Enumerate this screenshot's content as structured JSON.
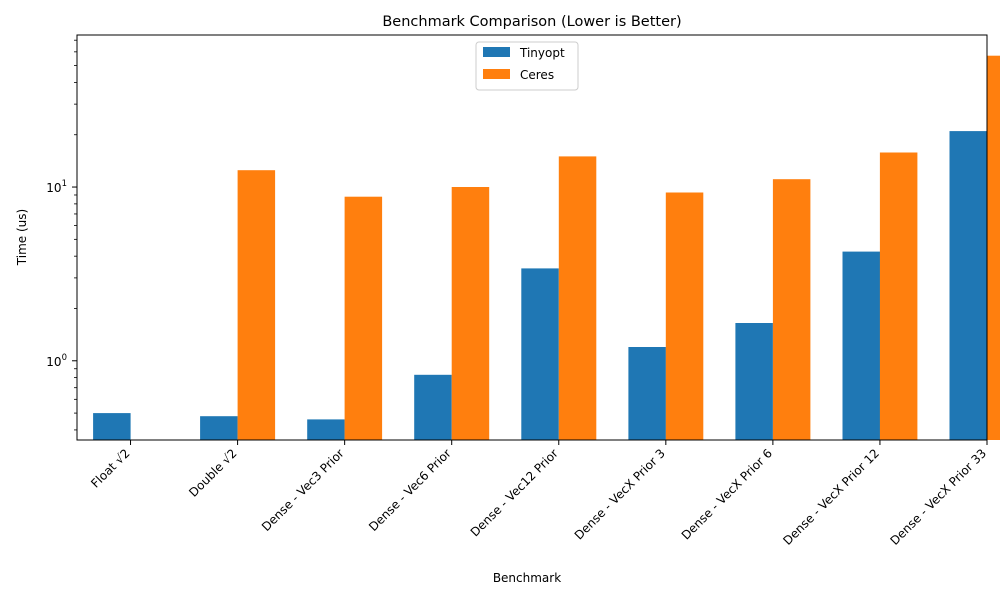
{
  "chart_data": {
    "type": "bar",
    "title": "Benchmark Comparison (Lower is Better)",
    "xlabel": "Benchmark",
    "ylabel": "Time (us)",
    "yscale": "log",
    "ylim": [
      0.35,
      75
    ],
    "yticks": [
      {
        "value": 1,
        "base": "10",
        "exp": "0"
      },
      {
        "value": 10,
        "base": "10",
        "exp": "1"
      }
    ],
    "categories": [
      "Float √2",
      "Double √2",
      "Dense - Vec3 Prior",
      "Dense - Vec6 Prior",
      "Dense - Vec12 Prior",
      "Dense - VecX Prior 3",
      "Dense - VecX Prior 6",
      "Dense - VecX Prior 12",
      "Dense - VecX Prior 33"
    ],
    "series": [
      {
        "name": "Tinyopt",
        "color": "#1f77b4",
        "values": [
          0.5,
          0.48,
          0.46,
          0.83,
          3.4,
          1.2,
          1.65,
          4.25,
          21
        ]
      },
      {
        "name": "Ceres",
        "color": "#ff7f0e",
        "values": [
          null,
          12.5,
          8.8,
          10.0,
          15.0,
          9.3,
          11.1,
          15.8,
          57
        ]
      }
    ],
    "legend_position": "top-center",
    "grid": false
  }
}
